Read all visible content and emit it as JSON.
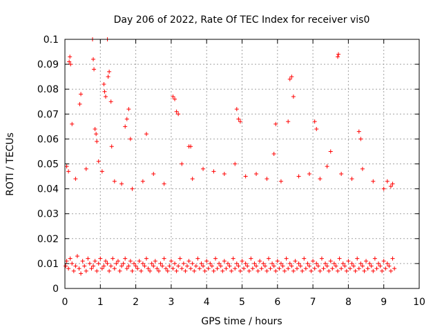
{
  "chart_data": {
    "type": "scatter",
    "title": "Day 206 of 2022, Rate Of TEC Index for receiver vis0",
    "xlabel": "GPS time / hours",
    "ylabel": "ROTI / TECUs",
    "xlim": [
      0,
      10
    ],
    "ylim": [
      0,
      0.1
    ],
    "x_ticks": [
      "0",
      "1",
      "2",
      "3",
      "4",
      "5",
      "6",
      "7",
      "8",
      "9",
      "10"
    ],
    "y_ticks": [
      "0",
      "0.01",
      "0.02",
      "0.03",
      "0.04",
      "0.05",
      "0.06",
      "0.07",
      "0.08",
      "0.09",
      "0.1"
    ],
    "grid": true,
    "marker": "+",
    "color": "#ff0000",
    "series": [
      {
        "x": [
          0.02,
          0.05,
          0.1,
          0.15,
          0.2,
          0.25,
          0.3,
          0.35,
          0.4,
          0.45,
          0.5,
          0.55,
          0.6,
          0.65,
          0.7,
          0.75,
          0.8,
          0.85,
          0.9,
          0.95,
          1.0,
          1.05,
          1.1,
          1.15,
          1.2,
          1.25,
          1.3,
          1.35,
          1.4,
          1.45,
          1.5,
          1.55,
          1.6,
          1.65,
          1.7,
          1.75,
          1.8,
          1.85,
          1.9,
          1.95,
          2.0,
          2.05,
          2.1,
          2.15,
          2.2,
          2.25,
          2.3,
          2.35,
          2.4,
          2.45,
          2.5,
          2.55,
          2.6,
          2.65,
          2.7,
          2.75,
          2.8,
          2.85,
          2.9,
          2.95,
          3.0,
          3.05,
          3.1,
          3.15,
          3.2,
          3.25,
          3.3,
          3.35,
          3.4,
          3.45,
          3.5,
          3.55,
          3.6,
          3.65,
          3.7,
          3.75,
          3.8,
          3.85,
          3.9,
          3.95,
          4.0,
          4.05,
          4.1,
          4.15,
          4.2,
          4.25,
          4.3,
          4.35,
          4.4,
          4.45,
          4.5,
          4.55,
          4.6,
          4.65,
          4.7,
          4.75,
          4.8,
          4.85,
          4.9,
          4.95,
          5.0,
          5.05,
          5.1,
          5.15,
          5.2,
          5.25,
          5.3,
          5.35,
          5.4,
          5.45,
          5.5,
          5.55,
          5.6,
          5.65,
          5.7,
          5.75,
          5.8,
          5.85,
          5.9,
          5.95,
          6.0,
          6.05,
          6.1,
          6.15,
          6.2,
          6.25,
          6.3,
          6.35,
          6.4,
          6.45,
          6.5,
          6.55,
          6.6,
          6.65,
          6.7,
          6.75,
          6.8,
          6.85,
          6.9,
          6.95,
          7.0,
          7.05,
          7.1,
          7.15,
          7.2,
          7.25,
          7.3,
          7.35,
          7.4,
          7.45,
          7.5,
          7.55,
          7.6,
          7.65,
          7.7,
          7.75,
          7.8,
          7.85,
          7.9,
          7.95,
          8.0,
          8.05,
          8.1,
          8.15,
          8.2,
          8.25,
          8.3,
          8.35,
          8.4,
          8.45,
          8.5,
          8.55,
          8.6,
          8.65,
          8.7,
          8.75,
          8.8,
          8.85,
          8.9,
          8.95,
          9.0,
          9.05,
          9.1,
          9.15,
          9.2,
          9.25,
          9.3,
          0.12,
          0.14,
          0.16,
          0.2,
          0.42,
          0.45,
          0.78,
          0.8,
          0.82,
          0.85,
          0.88,
          0.9,
          1.1,
          1.12,
          1.15,
          1.2,
          1.22,
          1.25,
          1.3,
          1.32,
          1.7,
          1.75,
          1.8,
          1.85,
          2.3,
          3.05,
          3.1,
          3.15,
          3.2,
          3.5,
          3.55,
          4.85,
          4.9,
          4.95,
          5.9,
          5.95,
          6.3,
          6.35,
          6.4,
          6.45,
          7.05,
          7.1,
          7.5,
          7.7,
          7.72,
          8.3,
          8.35,
          9.1,
          9.2,
          0.05,
          0.1,
          0.3,
          0.6,
          0.95,
          1.05,
          1.4,
          1.6,
          1.9,
          2.2,
          2.5,
          2.8,
          3.3,
          3.6,
          3.9,
          4.2,
          4.5,
          4.8,
          5.1,
          5.4,
          5.7,
          6.1,
          6.6,
          6.9,
          7.2,
          7.4,
          7.8,
          8.1,
          8.4,
          8.7,
          9.0,
          9.25
        ],
        "y": [
          0.009,
          0.011,
          0.008,
          0.012,
          0.01,
          0.007,
          0.009,
          0.013,
          0.008,
          0.006,
          0.011,
          0.009,
          0.007,
          0.012,
          0.01,
          0.008,
          0.009,
          0.011,
          0.007,
          0.01,
          0.012,
          0.008,
          0.009,
          0.011,
          0.01,
          0.007,
          0.009,
          0.012,
          0.008,
          0.01,
          0.011,
          0.007,
          0.009,
          0.01,
          0.012,
          0.008,
          0.009,
          0.011,
          0.007,
          0.01,
          0.009,
          0.008,
          0.011,
          0.007,
          0.01,
          0.009,
          0.012,
          0.008,
          0.007,
          0.01,
          0.009,
          0.011,
          0.008,
          0.007,
          0.01,
          0.009,
          0.012,
          0.008,
          0.007,
          0.009,
          0.011,
          0.008,
          0.01,
          0.007,
          0.009,
          0.012,
          0.008,
          0.01,
          0.007,
          0.009,
          0.011,
          0.008,
          0.01,
          0.007,
          0.009,
          0.012,
          0.008,
          0.01,
          0.009,
          0.007,
          0.011,
          0.008,
          0.01,
          0.009,
          0.007,
          0.012,
          0.008,
          0.01,
          0.009,
          0.007,
          0.011,
          0.008,
          0.01,
          0.009,
          0.007,
          0.012,
          0.008,
          0.01,
          0.009,
          0.007,
          0.011,
          0.008,
          0.01,
          0.009,
          0.007,
          0.012,
          0.008,
          0.01,
          0.009,
          0.007,
          0.011,
          0.008,
          0.01,
          0.009,
          0.007,
          0.012,
          0.008,
          0.01,
          0.009,
          0.007,
          0.011,
          0.008,
          0.01,
          0.009,
          0.007,
          0.012,
          0.008,
          0.01,
          0.009,
          0.007,
          0.011,
          0.008,
          0.01,
          0.009,
          0.007,
          0.012,
          0.008,
          0.01,
          0.009,
          0.007,
          0.011,
          0.008,
          0.01,
          0.009,
          0.007,
          0.012,
          0.008,
          0.01,
          0.009,
          0.007,
          0.011,
          0.008,
          0.01,
          0.009,
          0.007,
          0.012,
          0.008,
          0.01,
          0.009,
          0.007,
          0.011,
          0.008,
          0.01,
          0.009,
          0.007,
          0.012,
          0.008,
          0.01,
          0.009,
          0.007,
          0.011,
          0.008,
          0.01,
          0.009,
          0.007,
          0.012,
          0.008,
          0.01,
          0.009,
          0.007,
          0.011,
          0.008,
          0.01,
          0.009,
          0.007,
          0.012,
          0.008,
          0.091,
          0.093,
          0.09,
          0.066,
          0.074,
          0.078,
          0.1,
          0.092,
          0.088,
          0.064,
          0.062,
          0.059,
          0.082,
          0.079,
          0.077,
          0.1,
          0.085,
          0.087,
          0.075,
          0.057,
          0.065,
          0.068,
          0.072,
          0.06,
          0.062,
          0.077,
          0.076,
          0.071,
          0.07,
          0.057,
          0.057,
          0.072,
          0.068,
          0.067,
          0.054,
          0.066,
          0.067,
          0.084,
          0.085,
          0.077,
          0.067,
          0.064,
          0.055,
          0.093,
          0.094,
          0.063,
          0.06,
          0.043,
          0.041,
          0.049,
          0.047,
          0.044,
          0.048,
          0.051,
          0.047,
          0.043,
          0.042,
          0.04,
          0.043,
          0.046,
          0.042,
          0.05,
          0.044,
          0.048,
          0.047,
          0.046,
          0.05,
          0.045,
          0.046,
          0.044,
          0.043,
          0.045,
          0.046,
          0.044,
          0.049,
          0.046,
          0.044,
          0.048,
          0.043,
          0.04,
          0.042
        ]
      }
    ]
  }
}
